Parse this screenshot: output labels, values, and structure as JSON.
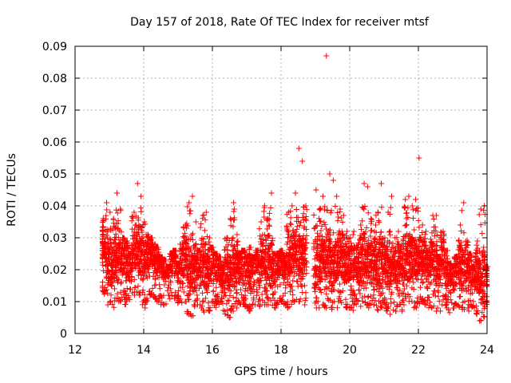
{
  "chart_data": {
    "type": "scatter",
    "title": "Day 157 of 2018, Rate Of TEC Index for receiver mtsf",
    "xlabel": "GPS time / hours",
    "ylabel": "ROTI / TECUs",
    "xlim": [
      12,
      24
    ],
    "ylim": [
      0,
      0.09
    ],
    "xticks": [
      12,
      14,
      16,
      18,
      20,
      22,
      24
    ],
    "yticks": [
      0,
      0.01,
      0.02,
      0.03,
      0.04,
      0.05,
      0.06,
      0.07,
      0.08,
      0.09
    ],
    "xtick_labels": [
      "12",
      "14",
      "16",
      "18",
      "20",
      "22",
      "24"
    ],
    "ytick_labels": [
      "0",
      "0.01",
      "0.02",
      "0.03",
      "0.04",
      "0.05",
      "0.06",
      "0.07",
      "0.08",
      "0.09"
    ],
    "grid": true,
    "marker": "+",
    "color": "#ff0000",
    "series": [
      {
        "name": "ROTI",
        "x": [
          12.8,
          12.9,
          13.0,
          13.1,
          13.2,
          13.3,
          13.4,
          13.5,
          13.6,
          13.7,
          13.8,
          13.9,
          14.0,
          14.1,
          14.2,
          14.3,
          14.4,
          14.5,
          14.6,
          14.7,
          14.8,
          14.9,
          15.0,
          15.1,
          15.2,
          15.3,
          15.4,
          15.5,
          15.6,
          15.7,
          15.8,
          15.9,
          16.0,
          16.1,
          16.2,
          16.3,
          16.4,
          16.5,
          16.6,
          16.7,
          16.8,
          16.9,
          17.0,
          17.1,
          17.2,
          17.3,
          17.4,
          17.5,
          17.6,
          17.7,
          17.8,
          17.9,
          18.0,
          18.1,
          18.2,
          18.3,
          18.4,
          18.5,
          18.6,
          18.7,
          19.0,
          19.1,
          19.2,
          19.3,
          19.4,
          19.5,
          19.6,
          19.7,
          19.8,
          19.9,
          20.0,
          20.1,
          20.2,
          20.3,
          20.4,
          20.5,
          20.6,
          20.7,
          20.8,
          20.9,
          21.0,
          21.1,
          21.2,
          21.3,
          21.4,
          21.5,
          21.6,
          21.7,
          21.8,
          21.9,
          22.0,
          22.1,
          22.2,
          22.3,
          22.4,
          22.5,
          22.6,
          22.7,
          22.8,
          22.9,
          23.0,
          23.1,
          23.2,
          23.3,
          23.4,
          23.5,
          23.6,
          23.7,
          23.8,
          23.9,
          24.0
        ],
        "y_peak": [
          0.036,
          0.041,
          0.038,
          0.036,
          0.044,
          0.039,
          0.03,
          0.029,
          0.025,
          0.038,
          0.047,
          0.043,
          0.035,
          0.031,
          0.03,
          0.028,
          0.027,
          0.024,
          0.023,
          0.021,
          0.025,
          0.026,
          0.022,
          0.028,
          0.034,
          0.041,
          0.043,
          0.035,
          0.026,
          0.037,
          0.038,
          0.03,
          0.027,
          0.025,
          0.024,
          0.021,
          0.03,
          0.036,
          0.041,
          0.031,
          0.025,
          0.026,
          0.024,
          0.027,
          0.024,
          0.026,
          0.035,
          0.04,
          0.036,
          0.044,
          0.025,
          0.025,
          0.026,
          0.024,
          0.038,
          0.04,
          0.044,
          0.058,
          0.054,
          0.04,
          0.045,
          0.039,
          0.043,
          0.087,
          0.05,
          0.048,
          0.043,
          0.039,
          0.037,
          0.032,
          0.03,
          0.032,
          0.027,
          0.034,
          0.047,
          0.046,
          0.036,
          0.032,
          0.038,
          0.047,
          0.03,
          0.038,
          0.043,
          0.03,
          0.032,
          0.028,
          0.042,
          0.043,
          0.04,
          0.042,
          0.055,
          0.034,
          0.032,
          0.026,
          0.037,
          0.037,
          0.024,
          0.032,
          0.026,
          0.022,
          0.021,
          0.024,
          0.034,
          0.041,
          0.029,
          0.025,
          0.021,
          0.029,
          0.039,
          0.04,
          0.021
        ],
        "y_low": [
          0.013,
          0.011,
          0.009,
          0.008,
          0.01,
          0.01,
          0.011,
          0.009,
          0.01,
          0.012,
          0.013,
          0.012,
          0.008,
          0.01,
          0.012,
          0.011,
          0.01,
          0.009,
          0.009,
          0.012,
          0.01,
          0.011,
          0.009,
          0.009,
          0.01,
          0.006,
          0.005,
          0.008,
          0.009,
          0.007,
          0.006,
          0.007,
          0.01,
          0.008,
          0.009,
          0.007,
          0.006,
          0.005,
          0.007,
          0.008,
          0.009,
          0.009,
          0.008,
          0.007,
          0.009,
          0.01,
          0.008,
          0.009,
          0.009,
          0.008,
          0.008,
          0.009,
          0.01,
          0.009,
          0.008,
          0.009,
          0.01,
          0.01,
          0.009,
          0.009,
          0.008,
          0.007,
          0.009,
          0.008,
          0.01,
          0.007,
          0.008,
          0.01,
          0.009,
          0.008,
          0.008,
          0.007,
          0.009,
          0.008,
          0.01,
          0.009,
          0.008,
          0.009,
          0.007,
          0.008,
          0.009,
          0.007,
          0.006,
          0.007,
          0.008,
          0.007,
          0.009,
          0.01,
          0.01,
          0.008,
          0.009,
          0.01,
          0.009,
          0.008,
          0.008,
          0.007,
          0.007,
          0.009,
          0.008,
          0.006,
          0.008,
          0.009,
          0.008,
          0.007,
          0.008,
          0.007,
          0.008,
          0.006,
          0.004,
          0.005,
          0.009
        ]
      }
    ]
  }
}
